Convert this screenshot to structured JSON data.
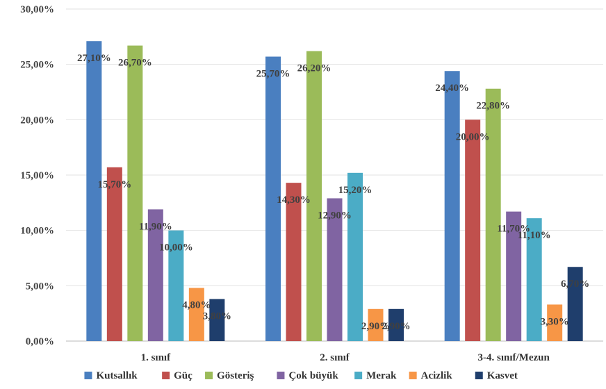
{
  "chart_data": {
    "type": "bar",
    "categories": [
      "1. sınıf",
      "2. sınıf",
      "3-4. sınıf/Mezun"
    ],
    "ylim": [
      0,
      30
    ],
    "yticks": [
      0,
      5,
      10,
      15,
      20,
      25,
      30
    ],
    "ytick_labels": [
      "0,00%",
      "5,00%",
      "10,00%",
      "15,00%",
      "20,00%",
      "25,00%",
      "30,00%"
    ],
    "grid": true,
    "legend_position": "bottom",
    "series": [
      {
        "name": "Kutsallık",
        "color": "#4a7fc0",
        "values": [
          27.1,
          25.7,
          24.4
        ],
        "labels": [
          "27,10%",
          "25,70%",
          "24,40%"
        ]
      },
      {
        "name": "Güç",
        "color": "#c0504d",
        "values": [
          15.7,
          14.3,
          20.0
        ],
        "labels": [
          "15,70%",
          "14,30%",
          "20,00%"
        ]
      },
      {
        "name": "Gösteriş",
        "color": "#9bbb59",
        "values": [
          26.7,
          26.2,
          22.8
        ],
        "labels": [
          "26,70%",
          "26,20%",
          "22,80%"
        ]
      },
      {
        "name": "Çok büyük",
        "color": "#8064a2",
        "values": [
          11.9,
          12.9,
          11.7
        ],
        "labels": [
          "11,90%",
          "12,90%",
          "11,70%"
        ]
      },
      {
        "name": "Merak",
        "color": "#4bacc6",
        "values": [
          10.0,
          15.2,
          11.1
        ],
        "labels": [
          "10,00%",
          "15,20%",
          "11,10%"
        ]
      },
      {
        "name": "Acizlik",
        "color": "#f79646",
        "values": [
          4.8,
          2.9,
          3.3
        ],
        "labels": [
          "4,80%",
          "2,90%",
          "3,30%"
        ]
      },
      {
        "name": "Kasvet",
        "color": "#1f3e6c",
        "values": [
          3.8,
          2.9,
          6.7
        ],
        "labels": [
          "3,80%",
          "2,90%",
          "6,70%"
        ]
      }
    ]
  }
}
